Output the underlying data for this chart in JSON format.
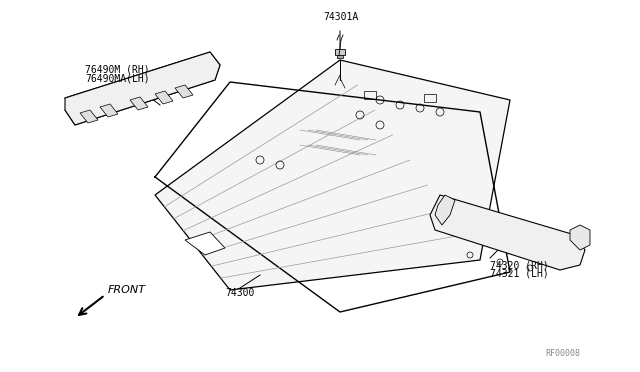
{
  "bg_color": "#ffffff",
  "line_color": "#000000",
  "light_gray": "#cccccc",
  "part_line_color": "#333333",
  "fig_width": 6.4,
  "fig_height": 3.72,
  "dpi": 100,
  "watermark": "RF00008",
  "labels": {
    "part1_line1": "76490M（RH）",
    "part1_line2": "76490MA（LH）",
    "part2": "74301A",
    "part3": "74300",
    "part4_line1": "74320（RH）",
    "part4_line2": "74321（LH）",
    "front": "FRONT"
  },
  "font_size": 7,
  "front_font_size": 8
}
